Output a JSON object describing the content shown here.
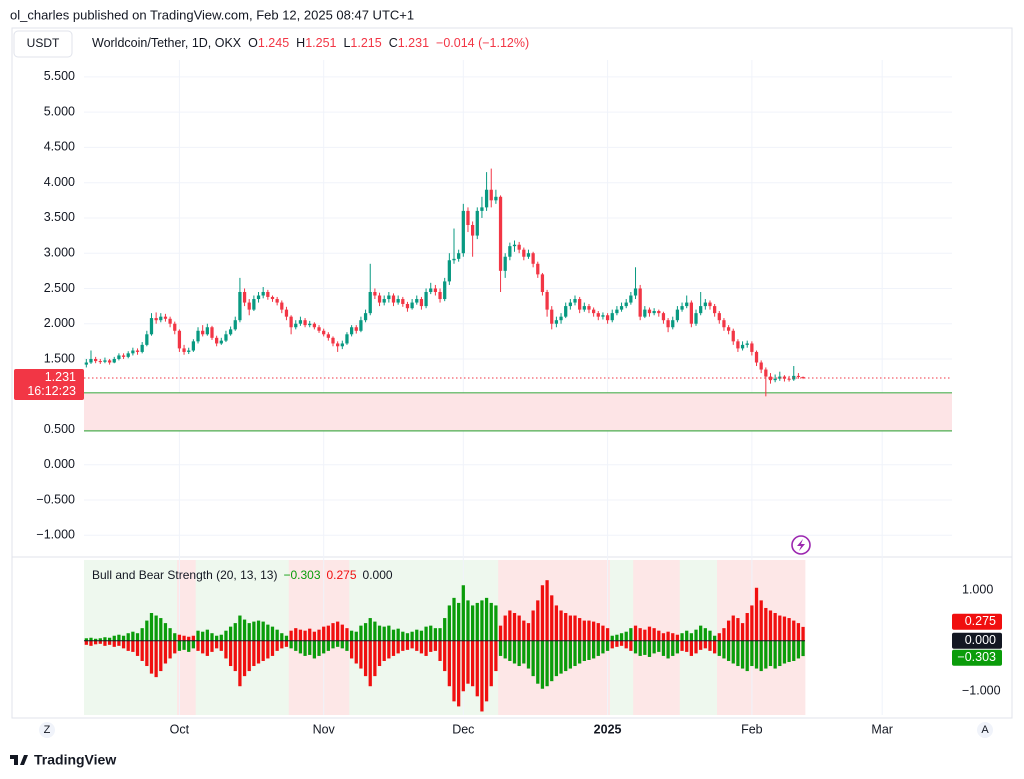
{
  "ui": {
    "publisher": "ol_charles published on TradingView.com, Feb 12, 2025 08:47 UTC+1",
    "currency": "USDT",
    "left_button": "Z",
    "right_button": "A",
    "brand": "TradingView",
    "countdown": "16:12:23"
  },
  "chart_data": {
    "type": "candlestick",
    "symbol": "Worldcoin/Tether, 1D, OKX",
    "ohlc_letters": [
      "O",
      "H",
      "L",
      "C"
    ],
    "change_label": "−0.014 (−1.12%)",
    "up_color": "#089981",
    "down_color": "#f23645",
    "xlim": [
      -0.5,
      186
    ],
    "xticks": [
      {
        "value": 20,
        "label": "Oct"
      },
      {
        "value": 51,
        "label": "Nov"
      },
      {
        "value": 81,
        "label": "Dec"
      },
      {
        "value": 112,
        "label": "2025"
      },
      {
        "value": 143,
        "label": "Feb"
      },
      {
        "value": 171,
        "label": "Mar"
      }
    ],
    "ylim": [
      -1.28,
      5.74
    ],
    "yticks": [
      {
        "value": 5.5,
        "label": "5.500"
      },
      {
        "value": 5,
        "label": "5.000"
      },
      {
        "value": 4.5,
        "label": "4.500"
      },
      {
        "value": 4,
        "label": "4.000"
      },
      {
        "value": 3.5,
        "label": "3.500"
      },
      {
        "value": 3,
        "label": "3.000"
      },
      {
        "value": 2.5,
        "label": "2.500"
      },
      {
        "value": 2,
        "label": "2.000"
      },
      {
        "value": 1.5,
        "label": "1.500"
      },
      {
        "value": 0.5,
        "label": "0.500"
      },
      {
        "value": 0,
        "label": "0.000"
      },
      {
        "value": -0.5,
        "label": "−0.500"
      },
      {
        "value": -1,
        "label": "−1.000"
      }
    ],
    "grid": true,
    "zone": {
      "top": 1.02,
      "bottom": 0.48,
      "fill": "#fde4e6",
      "line": "#4caf50"
    },
    "candles": [
      [
        1.42,
        1.5,
        1.38,
        1.45
      ],
      [
        1.45,
        1.62,
        1.43,
        1.5
      ],
      [
        1.5,
        1.53,
        1.44,
        1.47
      ],
      [
        1.47,
        1.5,
        1.43,
        1.46
      ],
      [
        1.46,
        1.52,
        1.44,
        1.48
      ],
      [
        1.48,
        1.5,
        1.42,
        1.45
      ],
      [
        1.45,
        1.53,
        1.44,
        1.5
      ],
      [
        1.5,
        1.58,
        1.48,
        1.55
      ],
      [
        1.55,
        1.58,
        1.5,
        1.53
      ],
      [
        1.53,
        1.61,
        1.51,
        1.58
      ],
      [
        1.58,
        1.66,
        1.55,
        1.62
      ],
      [
        1.62,
        1.65,
        1.56,
        1.6
      ],
      [
        1.6,
        1.74,
        1.58,
        1.7
      ],
      [
        1.7,
        1.9,
        1.68,
        1.85
      ],
      [
        1.85,
        2.15,
        1.83,
        2.08
      ],
      [
        2.08,
        2.16,
        2.0,
        2.05
      ],
      [
        2.05,
        2.15,
        2.02,
        2.1
      ],
      [
        2.1,
        2.14,
        2.03,
        2.07
      ],
      [
        2.07,
        2.1,
        1.95,
        2.0
      ],
      [
        2.0,
        2.03,
        1.85,
        1.9
      ],
      [
        1.9,
        1.92,
        1.6,
        1.65
      ],
      [
        1.65,
        1.7,
        1.56,
        1.6
      ],
      [
        1.6,
        1.66,
        1.57,
        1.62
      ],
      [
        1.62,
        1.78,
        1.6,
        1.75
      ],
      [
        1.75,
        1.95,
        1.72,
        1.9
      ],
      [
        1.9,
        1.98,
        1.82,
        1.85
      ],
      [
        1.85,
        2.0,
        1.83,
        1.95
      ],
      [
        1.95,
        1.97,
        1.77,
        1.8
      ],
      [
        1.8,
        1.83,
        1.68,
        1.72
      ],
      [
        1.72,
        1.8,
        1.7,
        1.76
      ],
      [
        1.76,
        1.9,
        1.74,
        1.85
      ],
      [
        1.85,
        1.96,
        1.83,
        1.92
      ],
      [
        1.92,
        2.1,
        1.9,
        2.05
      ],
      [
        2.05,
        2.65,
        2.02,
        2.45
      ],
      [
        2.45,
        2.5,
        2.25,
        2.3
      ],
      [
        2.3,
        2.35,
        2.12,
        2.2
      ],
      [
        2.2,
        2.4,
        2.18,
        2.35
      ],
      [
        2.35,
        2.45,
        2.3,
        2.4
      ],
      [
        2.4,
        2.52,
        2.36,
        2.45
      ],
      [
        2.45,
        2.48,
        2.34,
        2.38
      ],
      [
        2.38,
        2.4,
        2.31,
        2.35
      ],
      [
        2.35,
        2.38,
        2.26,
        2.3
      ],
      [
        2.3,
        2.33,
        2.15,
        2.2
      ],
      [
        2.2,
        2.24,
        2.05,
        2.1
      ],
      [
        2.1,
        2.12,
        1.85,
        1.95
      ],
      [
        1.95,
        2.05,
        1.92,
        2.0
      ],
      [
        2.0,
        2.1,
        1.97,
        2.05
      ],
      [
        2.05,
        2.08,
        1.95,
        1.98
      ],
      [
        1.98,
        2.04,
        1.95,
        2.0
      ],
      [
        2.0,
        2.02,
        1.92,
        1.95
      ],
      [
        1.95,
        1.98,
        1.87,
        1.9
      ],
      [
        1.9,
        1.93,
        1.82,
        1.85
      ],
      [
        1.85,
        1.88,
        1.76,
        1.8
      ],
      [
        1.8,
        1.82,
        1.68,
        1.72
      ],
      [
        1.72,
        1.75,
        1.6,
        1.68
      ],
      [
        1.68,
        1.76,
        1.64,
        1.72
      ],
      [
        1.72,
        1.88,
        1.7,
        1.85
      ],
      [
        1.85,
        1.98,
        1.82,
        1.95
      ],
      [
        1.95,
        1.98,
        1.86,
        1.9
      ],
      [
        1.9,
        2.1,
        1.88,
        2.05
      ],
      [
        2.05,
        2.2,
        2.02,
        2.15
      ],
      [
        2.15,
        2.85,
        2.12,
        2.45
      ],
      [
        2.45,
        2.5,
        2.35,
        2.4
      ],
      [
        2.4,
        2.44,
        2.25,
        2.3
      ],
      [
        2.3,
        2.4,
        2.26,
        2.35
      ],
      [
        2.35,
        2.45,
        2.3,
        2.4
      ],
      [
        2.4,
        2.43,
        2.25,
        2.3
      ],
      [
        2.3,
        2.4,
        2.27,
        2.35
      ],
      [
        2.35,
        2.38,
        2.24,
        2.28
      ],
      [
        2.28,
        2.31,
        2.17,
        2.22
      ],
      [
        2.22,
        2.35,
        2.2,
        2.3
      ],
      [
        2.3,
        2.4,
        2.27,
        2.35
      ],
      [
        2.35,
        2.38,
        2.2,
        2.25
      ],
      [
        2.25,
        2.5,
        2.22,
        2.45
      ],
      [
        2.45,
        2.58,
        2.42,
        2.5
      ],
      [
        2.5,
        2.55,
        2.4,
        2.45
      ],
      [
        2.45,
        2.5,
        2.3,
        2.35
      ],
      [
        2.35,
        2.65,
        2.32,
        2.6
      ],
      [
        2.6,
        3.0,
        2.55,
        2.9
      ],
      [
        2.9,
        3.35,
        2.85,
        2.92
      ],
      [
        2.92,
        3.05,
        2.88,
        3.0
      ],
      [
        3.0,
        3.7,
        2.95,
        3.6
      ],
      [
        3.6,
        3.65,
        3.3,
        3.4
      ],
      [
        3.4,
        3.45,
        2.95,
        3.25
      ],
      [
        3.25,
        3.65,
        3.2,
        3.6
      ],
      [
        3.6,
        3.8,
        3.5,
        3.65
      ],
      [
        3.65,
        4.15,
        3.6,
        3.9
      ],
      [
        3.9,
        4.2,
        3.65,
        3.75
      ],
      [
        3.75,
        3.9,
        3.7,
        3.8
      ],
      [
        3.8,
        3.82,
        2.45,
        2.75
      ],
      [
        2.75,
        3.0,
        2.65,
        2.95
      ],
      [
        2.95,
        3.15,
        2.9,
        3.1
      ],
      [
        3.1,
        3.18,
        3.02,
        3.12
      ],
      [
        3.12,
        3.16,
        3.0,
        3.05
      ],
      [
        3.05,
        3.08,
        2.9,
        2.95
      ],
      [
        2.95,
        3.05,
        2.92,
        3.0
      ],
      [
        3.0,
        3.02,
        2.8,
        2.85
      ],
      [
        2.85,
        2.88,
        2.65,
        2.7
      ],
      [
        2.7,
        2.72,
        2.4,
        2.45
      ],
      [
        2.45,
        2.48,
        2.1,
        2.2
      ],
      [
        2.2,
        2.25,
        1.92,
        2.0
      ],
      [
        2.0,
        2.1,
        1.95,
        2.05
      ],
      [
        2.05,
        2.15,
        2.0,
        2.1
      ],
      [
        2.1,
        2.3,
        2.08,
        2.25
      ],
      [
        2.25,
        2.35,
        2.2,
        2.3
      ],
      [
        2.3,
        2.4,
        2.26,
        2.35
      ],
      [
        2.35,
        2.38,
        2.15,
        2.2
      ],
      [
        2.2,
        2.3,
        2.17,
        2.25
      ],
      [
        2.25,
        2.28,
        2.15,
        2.2
      ],
      [
        2.2,
        2.23,
        2.1,
        2.15
      ],
      [
        2.15,
        2.18,
        2.05,
        2.1
      ],
      [
        2.1,
        2.16,
        2.06,
        2.12
      ],
      [
        2.12,
        2.15,
        2.0,
        2.05
      ],
      [
        2.05,
        2.2,
        2.02,
        2.15
      ],
      [
        2.15,
        2.25,
        2.12,
        2.2
      ],
      [
        2.2,
        2.3,
        2.17,
        2.25
      ],
      [
        2.25,
        2.35,
        2.22,
        2.3
      ],
      [
        2.3,
        2.45,
        2.27,
        2.4
      ],
      [
        2.4,
        2.8,
        2.35,
        2.5
      ],
      [
        2.5,
        2.55,
        2.05,
        2.1
      ],
      [
        2.1,
        2.25,
        2.08,
        2.2
      ],
      [
        2.2,
        2.23,
        2.1,
        2.15
      ],
      [
        2.15,
        2.22,
        2.12,
        2.18
      ],
      [
        2.18,
        2.2,
        2.1,
        2.15
      ],
      [
        2.15,
        2.17,
        2.0,
        2.05
      ],
      [
        2.05,
        2.08,
        1.88,
        1.95
      ],
      [
        1.95,
        2.1,
        1.92,
        2.05
      ],
      [
        2.05,
        2.25,
        2.02,
        2.2
      ],
      [
        2.2,
        2.3,
        2.17,
        2.25
      ],
      [
        2.25,
        2.4,
        2.22,
        2.3
      ],
      [
        2.3,
        2.33,
        1.95,
        2.0
      ],
      [
        2.0,
        2.2,
        1.97,
        2.15
      ],
      [
        2.15,
        2.45,
        2.12,
        2.25
      ],
      [
        2.25,
        2.35,
        2.2,
        2.3
      ],
      [
        2.3,
        2.33,
        2.2,
        2.25
      ],
      [
        2.25,
        2.28,
        2.1,
        2.15
      ],
      [
        2.15,
        2.18,
        2.0,
        2.05
      ],
      [
        2.05,
        2.08,
        1.9,
        1.95
      ],
      [
        1.95,
        1.98,
        1.85,
        1.9
      ],
      [
        1.9,
        1.93,
        1.7,
        1.75
      ],
      [
        1.75,
        1.78,
        1.6,
        1.65
      ],
      [
        1.65,
        1.75,
        1.62,
        1.7
      ],
      [
        1.7,
        1.76,
        1.66,
        1.72
      ],
      [
        1.72,
        1.75,
        1.55,
        1.6
      ],
      [
        1.6,
        1.62,
        1.4,
        1.45
      ],
      [
        1.45,
        1.48,
        1.3,
        1.35
      ],
      [
        1.35,
        1.38,
        0.97,
        1.25
      ],
      [
        1.25,
        1.3,
        1.15,
        1.2
      ],
      [
        1.2,
        1.28,
        1.17,
        1.22
      ],
      [
        1.22,
        1.32,
        1.19,
        1.25
      ],
      [
        1.25,
        1.27,
        1.18,
        1.22
      ],
      [
        1.22,
        1.26,
        1.18,
        1.21
      ],
      [
        1.21,
        1.4,
        1.19,
        1.26
      ],
      [
        1.26,
        1.3,
        1.22,
        1.245
      ],
      [
        1.245,
        1.251,
        1.215,
        1.231
      ]
    ],
    "indicator": {
      "type": "bar",
      "title": "Bull and Bear Strength (20, 13, 13)",
      "ylim": [
        -1.47,
        1.6
      ],
      "yticks": [
        {
          "value": 1,
          "label": "1.000"
        },
        {
          "value": -1,
          "label": "−1.000"
        }
      ],
      "zero": {
        "value": 0,
        "label": "0.000",
        "color": "#131722"
      },
      "green": "#0a9c0a",
      "red": "#f00f0f",
      "regimes": [
        {
          "from": 0,
          "to": 19,
          "trend": "bull"
        },
        {
          "from": 20,
          "to": 23,
          "trend": "bear"
        },
        {
          "from": 24,
          "to": 43,
          "trend": "bull"
        },
        {
          "from": 44,
          "to": 56,
          "trend": "bear"
        },
        {
          "from": 57,
          "to": 88,
          "trend": "bull"
        },
        {
          "from": 89,
          "to": 112,
          "trend": "bear"
        },
        {
          "from": 113,
          "to": 117,
          "trend": "bull"
        },
        {
          "from": 118,
          "to": 127,
          "trend": "bear"
        },
        {
          "from": 128,
          "to": 135,
          "trend": "bull"
        },
        {
          "from": 136,
          "to": 154,
          "trend": "bear"
        }
      ],
      "up_values": [
        0.05,
        0.06,
        0.04,
        0.05,
        0.07,
        0.06,
        0.1,
        0.12,
        0.1,
        0.15,
        0.18,
        0.15,
        0.25,
        0.4,
        0.55,
        0.5,
        0.45,
        0.35,
        0.25,
        0.15,
        0.12,
        0.1,
        0.08,
        0.1,
        0.2,
        0.18,
        0.22,
        0.15,
        0.1,
        0.12,
        0.2,
        0.28,
        0.35,
        0.5,
        0.42,
        0.35,
        0.38,
        0.4,
        0.38,
        0.32,
        0.28,
        0.22,
        0.15,
        0.1,
        0.2,
        0.25,
        0.22,
        0.2,
        0.24,
        0.18,
        0.22,
        0.28,
        0.3,
        0.35,
        0.38,
        0.32,
        0.25,
        0.2,
        0.18,
        0.3,
        0.35,
        0.45,
        0.38,
        0.3,
        0.28,
        0.3,
        0.22,
        0.24,
        0.18,
        0.15,
        0.18,
        0.22,
        0.2,
        0.28,
        0.3,
        0.25,
        0.25,
        0.45,
        0.7,
        0.85,
        0.75,
        1.1,
        0.8,
        0.7,
        0.75,
        0.8,
        0.85,
        0.75,
        0.7,
        0.3,
        0.5,
        0.6,
        0.55,
        0.5,
        0.4,
        0.35,
        0.6,
        0.8,
        1.1,
        1.2,
        0.9,
        0.7,
        0.6,
        0.55,
        0.5,
        0.5,
        0.45,
        0.4,
        0.4,
        0.38,
        0.35,
        0.3,
        0.25,
        0.1,
        0.12,
        0.15,
        0.18,
        0.25,
        0.3,
        0.25,
        0.22,
        0.28,
        0.25,
        0.2,
        0.15,
        0.18,
        0.15,
        0.12,
        0.15,
        0.2,
        0.15,
        0.22,
        0.3,
        0.25,
        0.2,
        0.1,
        0.15,
        0.25,
        0.4,
        0.5,
        0.45,
        0.35,
        0.55,
        0.7,
        1.05,
        0.8,
        0.65,
        0.6,
        0.55,
        0.5,
        0.48,
        0.45,
        0.4,
        0.35,
        0.275
      ],
      "down_values": [
        -0.08,
        -0.1,
        -0.07,
        -0.06,
        -0.1,
        -0.08,
        -0.12,
        -0.1,
        -0.15,
        -0.2,
        -0.22,
        -0.3,
        -0.4,
        -0.5,
        -0.65,
        -0.72,
        -0.6,
        -0.45,
        -0.35,
        -0.25,
        -0.2,
        -0.18,
        -0.22,
        -0.15,
        -0.2,
        -0.25,
        -0.3,
        -0.22,
        -0.15,
        -0.2,
        -0.35,
        -0.5,
        -0.6,
        -0.9,
        -0.7,
        -0.6,
        -0.5,
        -0.45,
        -0.4,
        -0.35,
        -0.3,
        -0.2,
        -0.15,
        -0.12,
        -0.15,
        -0.2,
        -0.25,
        -0.3,
        -0.28,
        -0.35,
        -0.3,
        -0.25,
        -0.2,
        -0.15,
        -0.12,
        -0.15,
        -0.2,
        -0.35,
        -0.45,
        -0.55,
        -0.7,
        -0.9,
        -0.7,
        -0.5,
        -0.4,
        -0.35,
        -0.3,
        -0.25,
        -0.2,
        -0.18,
        -0.15,
        -0.2,
        -0.25,
        -0.3,
        -0.22,
        -0.2,
        -0.4,
        -0.6,
        -0.9,
        -1.2,
        -1.3,
        -1.0,
        -0.85,
        -0.9,
        -1.1,
        -1.4,
        -1.2,
        -0.9,
        -0.6,
        -0.3,
        -0.35,
        -0.4,
        -0.45,
        -0.5,
        -0.45,
        -0.55,
        -0.7,
        -0.85,
        -0.95,
        -0.9,
        -0.8,
        -0.7,
        -0.65,
        -0.6,
        -0.55,
        -0.5,
        -0.45,
        -0.4,
        -0.38,
        -0.35,
        -0.3,
        -0.25,
        -0.2,
        -0.15,
        -0.12,
        -0.1,
        -0.15,
        -0.2,
        -0.25,
        -0.3,
        -0.28,
        -0.32,
        -0.25,
        -0.22,
        -0.3,
        -0.35,
        -0.3,
        -0.25,
        -0.2,
        -0.22,
        -0.3,
        -0.25,
        -0.18,
        -0.15,
        -0.2,
        -0.25,
        -0.3,
        -0.35,
        -0.4,
        -0.45,
        -0.5,
        -0.55,
        -0.6,
        -0.5,
        -0.55,
        -0.6,
        -0.55,
        -0.5,
        -0.55,
        -0.5,
        -0.45,
        -0.42,
        -0.4,
        -0.35,
        -0.303
      ],
      "readouts": [
        {
          "label": "−0.303",
          "color": "#0a9c0a"
        },
        {
          "label": "0.275",
          "color": "#f00f0f"
        }
      ]
    }
  }
}
